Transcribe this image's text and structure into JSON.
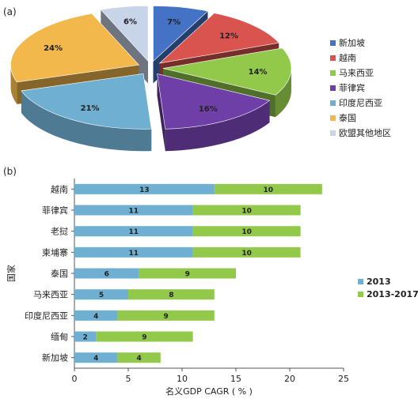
{
  "panels": {
    "a": "(a)",
    "b": "(b)"
  },
  "chart_data": [
    {
      "type": "pie",
      "panel": "(a)",
      "categories": [
        "新加坡",
        "越南",
        "马来西亚",
        "菲律宾",
        "印度尼西亚",
        "泰国",
        "欧盟其他地区"
      ],
      "values": [
        7,
        12,
        14,
        16,
        21,
        24,
        6
      ],
      "labels": [
        "7%",
        "12%",
        "14%",
        "16%",
        "21%",
        "24%",
        "6%"
      ],
      "colors": [
        "#4472c4",
        "#d9534f",
        "#92c94a",
        "#6f3fa8",
        "#6fb0d2",
        "#f2b84b",
        "#c8d4e8"
      ],
      "exploded": true,
      "legend": "right"
    },
    {
      "type": "bar",
      "orientation": "horizontal",
      "stacked": true,
      "panel": "(b)",
      "categories": [
        "越南",
        "菲律宾",
        "老挝",
        "柬埔寨",
        "泰国",
        "马来西亚",
        "印度尼西亚",
        "缅甸",
        "新加坡"
      ],
      "series": [
        {
          "name": "2013",
          "values": [
            13,
            11,
            11,
            11,
            6,
            5,
            4,
            2,
            4
          ],
          "color": "#6fb0d2"
        },
        {
          "name": "2013-2017",
          "values": [
            10,
            10,
            10,
            10,
            9,
            8,
            9,
            9,
            4
          ],
          "color": "#92c94a"
        }
      ],
      "xlabel": "名义GDP CAGR ( % )",
      "ylabel": "国家",
      "xlim": [
        0,
        25
      ],
      "xticks": [
        "0",
        "5",
        "10",
        "15",
        "20",
        "25"
      ],
      "legend": "right"
    }
  ]
}
